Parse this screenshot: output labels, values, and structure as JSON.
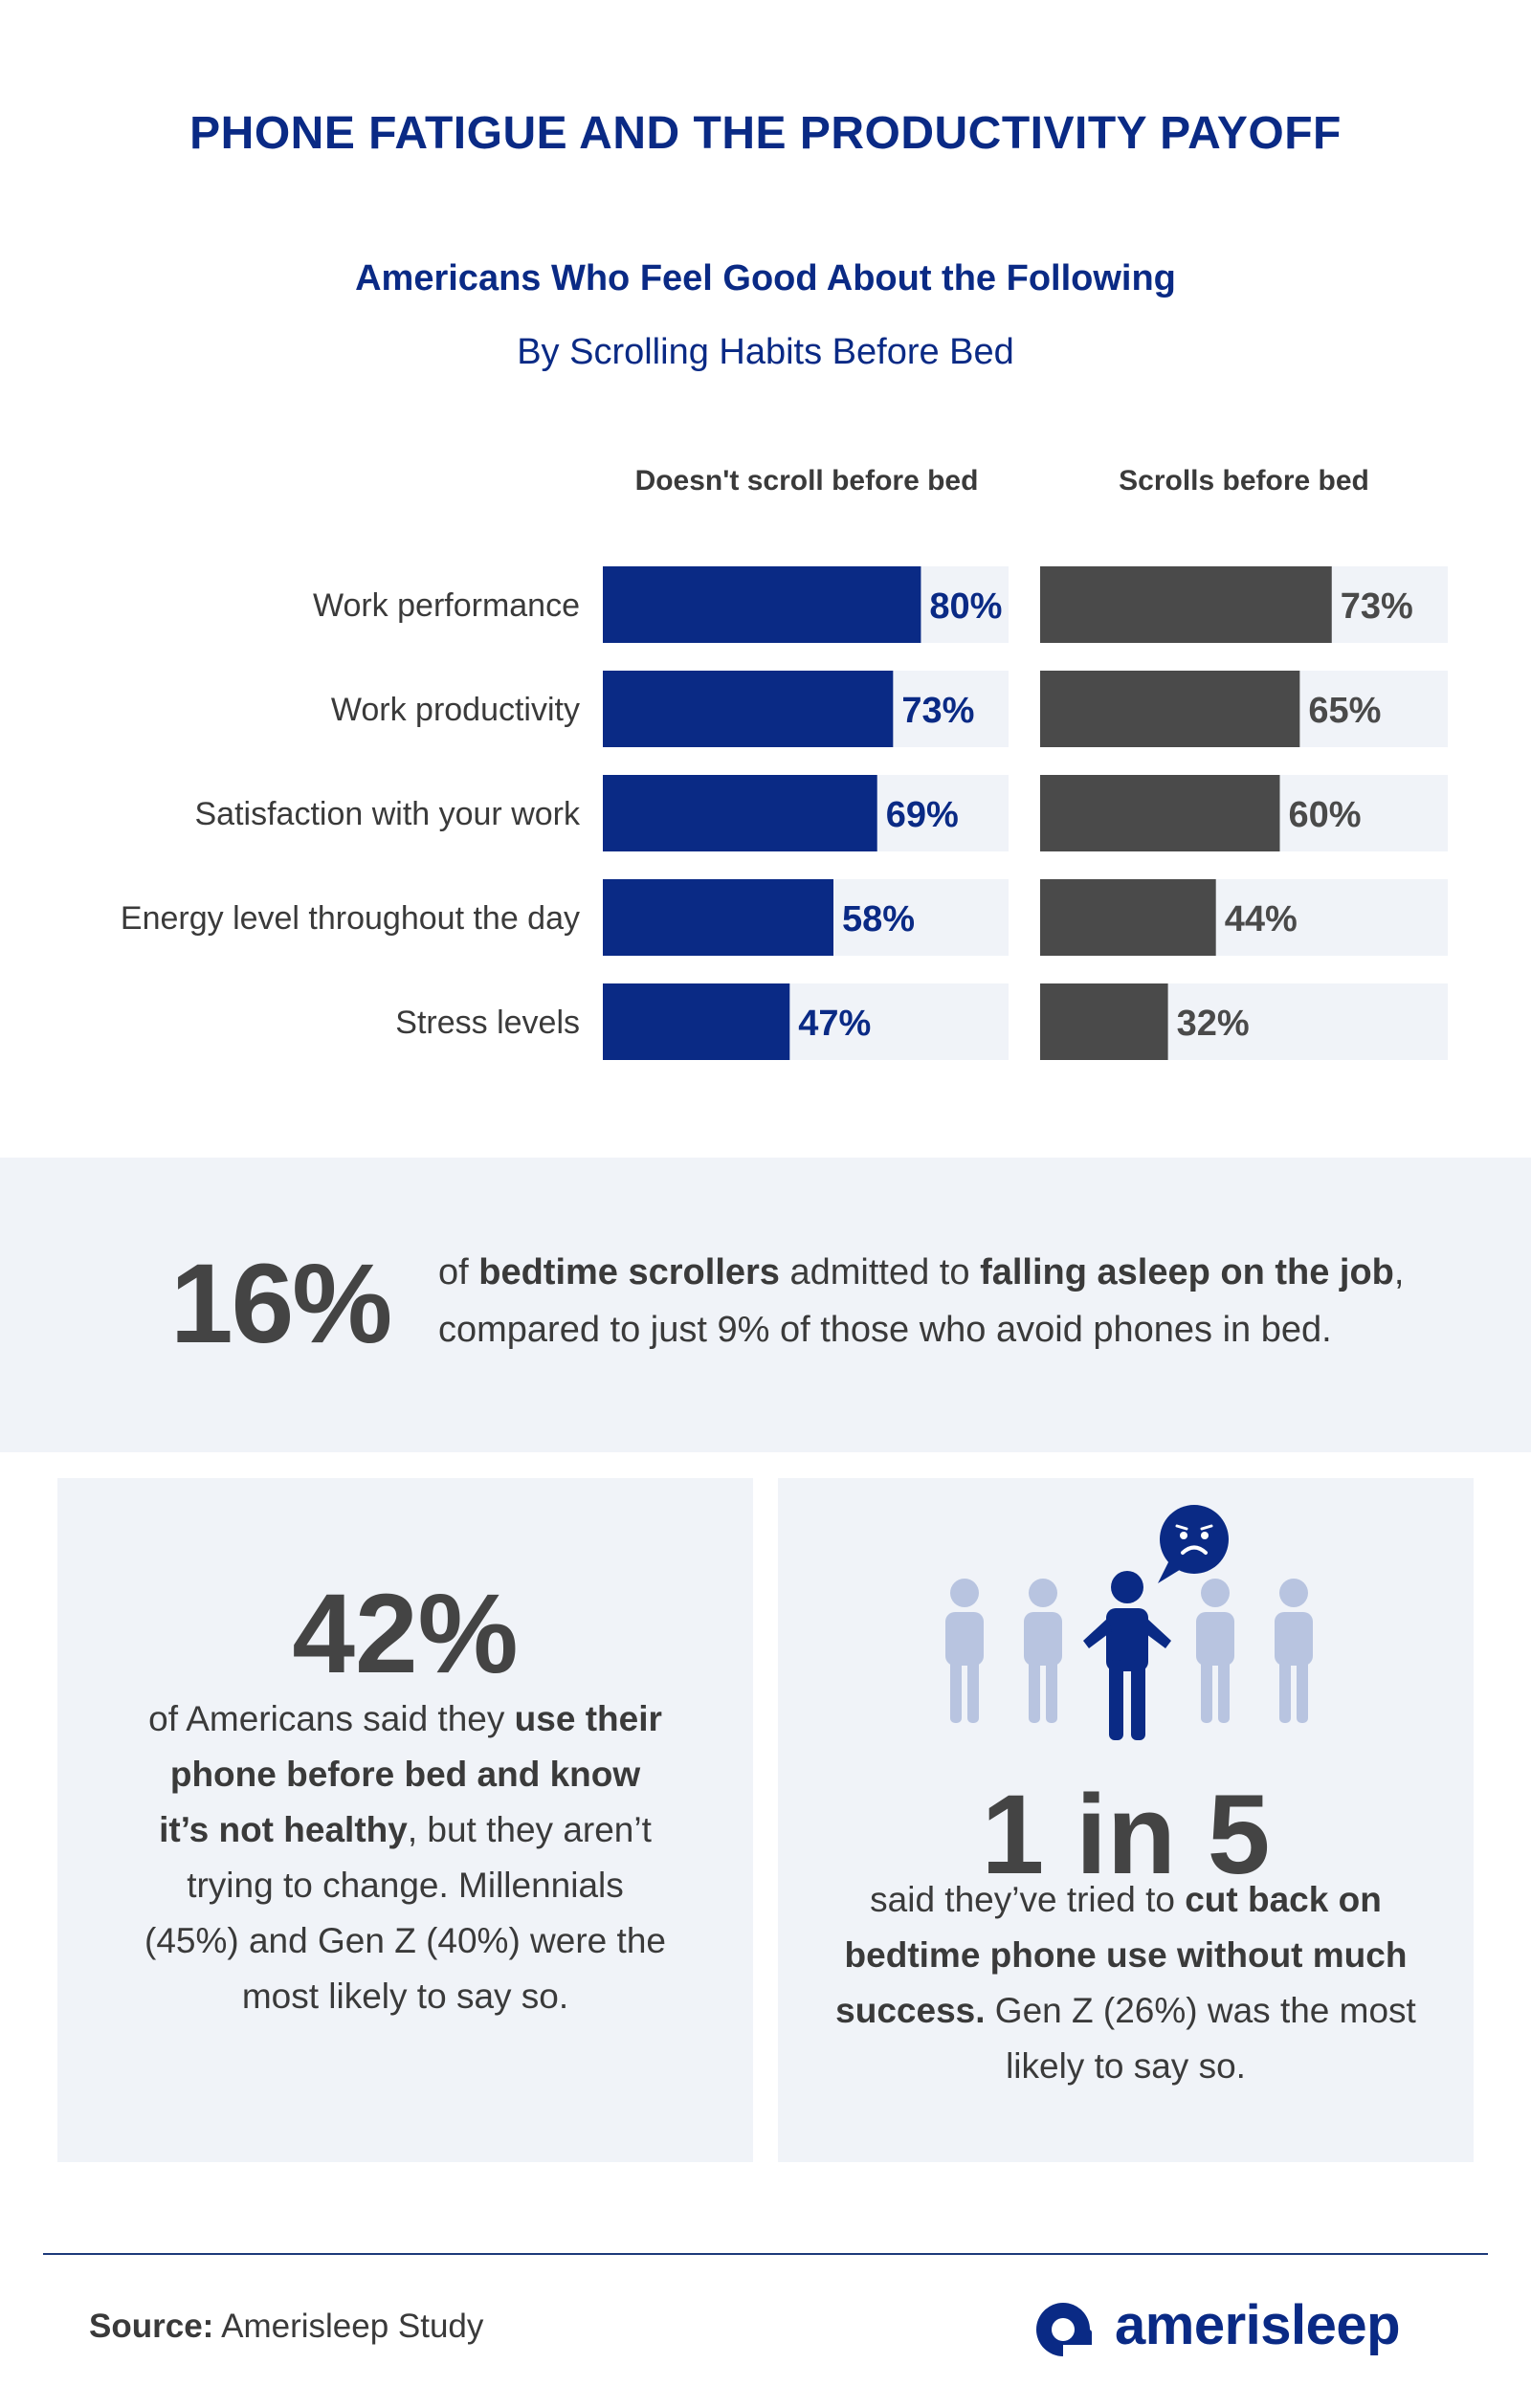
{
  "title": "PHONE FATIGUE AND THE PRODUCTIVITY PAYOFF",
  "colors": {
    "navy": "#0a2a85",
    "gray_bar": "#4a4a4a",
    "track": "#f0f3f8"
  },
  "chart_data": {
    "type": "bar",
    "orientation": "horizontal",
    "title": "Americans Who Feel Good About the Following",
    "subtitle": "By Scrolling Habits Before Bed",
    "categories": [
      "Work performance",
      "Work productivity",
      "Satisfaction with your work",
      "Energy level throughout the day",
      "Stress levels"
    ],
    "series": [
      {
        "name": "Doesn't scroll before bed",
        "values": [
          80,
          73,
          69,
          58,
          47
        ],
        "labels": [
          "80%",
          "73%",
          "69%",
          "58%",
          "47%"
        ],
        "color": "#0a2a85"
      },
      {
        "name": "Scrolls before bed",
        "values": [
          73,
          65,
          60,
          44,
          32
        ],
        "labels": [
          "73%",
          "65%",
          "60%",
          "44%",
          "32%"
        ],
        "color": "#4a4a4a"
      }
    ],
    "xlim": [
      0,
      100
    ],
    "grid": false
  },
  "stat_16": {
    "number": "16%",
    "t1": "of ",
    "b1": "bedtime scrollers",
    "t2": " admitted to ",
    "b2": "falling asleep on the job",
    "t3": ",",
    "t4": "compared to just 9% of those who avoid phones in bed."
  },
  "stat_42": {
    "number": "42%",
    "t1": "of Americans said they ",
    "b1": "use their phone before bed and know it’s not healthy",
    "t2": ", but they aren’t trying to change. Millennials (45%) and Gen Z (40%) were the most likely to say so."
  },
  "stat_1in5": {
    "number": "1 in 5",
    "t1": "said they’ve tried to ",
    "b1": "cut back on bedtime phone use without much success.",
    "t2": " Gen Z (26%) was the most likely to say so."
  },
  "footer": {
    "source_label": "Source:",
    "source_text": " Amerisleep Study",
    "brand": "amerisleep"
  }
}
